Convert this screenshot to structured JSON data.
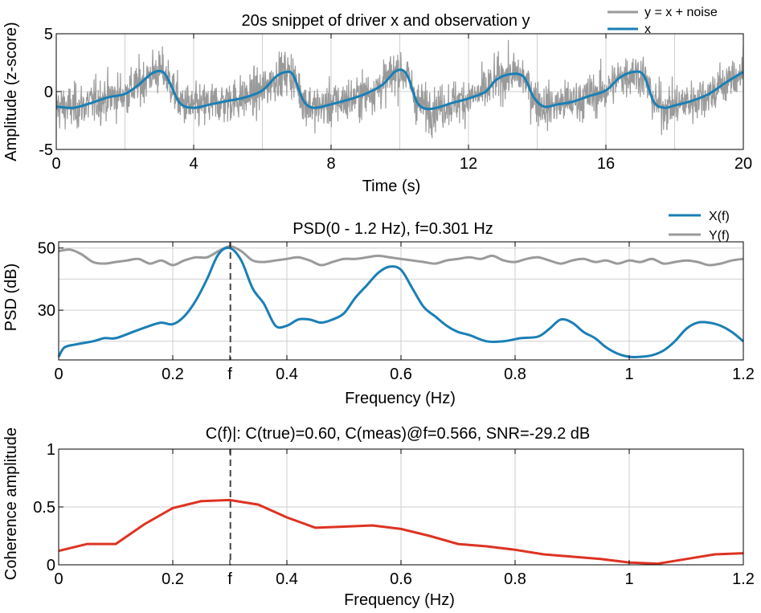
{
  "colors": {
    "x_series": "#1a7fb5",
    "y_series": "#9a9a9a",
    "coherence": "#dd3322",
    "marker": "#444444",
    "grid": "#cfcfcf"
  },
  "chart_data": [
    {
      "type": "line",
      "title": "20s snippet of driver x and observation y",
      "xlabel": "Time (s)",
      "ylabel": "Amplitude (z-score)",
      "xlim": [
        0,
        20
      ],
      "ylim": [
        -5,
        5
      ],
      "xticks": [
        0,
        4,
        8,
        12,
        16,
        20
      ],
      "yticks": [
        -5,
        0,
        5
      ],
      "xtick_labels": [
        "0",
        "4",
        "8",
        "12",
        "16",
        "20"
      ],
      "ytick_labels": [
        "-5",
        "0",
        "5"
      ],
      "grid": true,
      "legend": "top-right",
      "series": [
        {
          "name": "y = x + noise",
          "note_noise_std": 1.0,
          "x": [],
          "y": []
        },
        {
          "name": "x",
          "x": [
            0,
            0.5,
            1,
            1.5,
            2,
            2.4,
            2.8,
            3.1,
            3.3,
            3.6,
            4,
            4.5,
            5,
            5.5,
            6,
            6.4,
            6.7,
            6.9,
            7.2,
            7.5,
            8,
            8.5,
            9,
            9.5,
            9.9,
            10.2,
            10.5,
            10.8,
            11.2,
            11.5,
            12,
            12.5,
            12.8,
            13.2,
            13.6,
            13.9,
            14.2,
            14.6,
            15,
            15.5,
            16,
            16.4,
            16.8,
            17.1,
            17.4,
            17.7,
            18,
            18.5,
            19,
            19.5,
            20
          ],
          "y": [
            -1.3,
            -1.4,
            -1.0,
            -0.5,
            -0.2,
            0.6,
            1.6,
            1.7,
            0.8,
            -1.0,
            -1.4,
            -1.1,
            -0.8,
            -0.5,
            0.1,
            1.3,
            1.7,
            1.4,
            -0.8,
            -1.4,
            -1.1,
            -0.7,
            -0.2,
            0.6,
            1.8,
            1.5,
            -0.9,
            -1.5,
            -1.3,
            -1.0,
            -0.6,
            0.0,
            1.0,
            1.5,
            1.3,
            -0.5,
            -1.3,
            -1.1,
            -0.9,
            -0.4,
            0.1,
            1.2,
            1.7,
            1.4,
            -0.9,
            -1.4,
            -1.2,
            -0.8,
            -0.2,
            0.8,
            1.7
          ]
        }
      ]
    },
    {
      "type": "line",
      "title": "PSD(0 - 1.2 Hz), f=0.301 Hz",
      "xlabel": "Frequency (Hz)",
      "ylabel": "PSD (dB)",
      "xlim": [
        0,
        1.2
      ],
      "ylim": [
        14,
        52
      ],
      "xticks": [
        0,
        0.2,
        0.3,
        0.4,
        0.6,
        0.8,
        1,
        1.2
      ],
      "xtick_labels": [
        "0",
        "0.2",
        "f",
        "0.4",
        "0.6",
        "0.8",
        "1",
        "1.2"
      ],
      "yticks": [
        30,
        50
      ],
      "ytick_labels": [
        "30",
        "50"
      ],
      "ygrid": [
        20,
        30,
        40,
        50
      ],
      "marker_f": 0.301,
      "grid": true,
      "legend": "top-right",
      "series": [
        {
          "name": "X(f)",
          "x": [
            0,
            0.01,
            0.03,
            0.06,
            0.08,
            0.1,
            0.13,
            0.16,
            0.18,
            0.2,
            0.22,
            0.24,
            0.26,
            0.28,
            0.3,
            0.32,
            0.34,
            0.36,
            0.38,
            0.4,
            0.42,
            0.44,
            0.46,
            0.48,
            0.5,
            0.52,
            0.54,
            0.56,
            0.58,
            0.6,
            0.62,
            0.64,
            0.66,
            0.68,
            0.7,
            0.72,
            0.75,
            0.78,
            0.81,
            0.84,
            0.86,
            0.88,
            0.9,
            0.92,
            0.94,
            0.96,
            0.98,
            1.0,
            1.02,
            1.04,
            1.06,
            1.08,
            1.1,
            1.12,
            1.14,
            1.16,
            1.18,
            1.2
          ],
          "y": [
            15,
            18,
            19,
            20,
            21,
            21,
            23,
            25,
            26,
            25.5,
            28,
            33,
            40,
            48,
            50,
            46,
            37,
            32,
            25,
            25,
            27,
            27,
            26,
            27,
            29,
            34,
            38,
            42,
            44,
            43,
            37,
            31,
            28,
            25,
            23,
            22,
            20,
            20,
            21,
            21.5,
            24,
            27,
            26,
            23,
            21,
            18,
            16,
            15,
            15,
            15.5,
            17,
            20,
            24,
            26,
            26,
            25,
            23,
            20
          ]
        },
        {
          "name": "Y(f)",
          "x": [
            0,
            0.02,
            0.04,
            0.06,
            0.08,
            0.1,
            0.12,
            0.14,
            0.16,
            0.18,
            0.2,
            0.22,
            0.24,
            0.26,
            0.28,
            0.3,
            0.32,
            0.34,
            0.36,
            0.38,
            0.4,
            0.42,
            0.44,
            0.46,
            0.48,
            0.5,
            0.52,
            0.54,
            0.56,
            0.58,
            0.6,
            0.62,
            0.64,
            0.66,
            0.68,
            0.7,
            0.72,
            0.74,
            0.76,
            0.78,
            0.8,
            0.82,
            0.84,
            0.86,
            0.88,
            0.9,
            0.92,
            0.94,
            0.96,
            0.98,
            1.0,
            1.02,
            1.04,
            1.06,
            1.08,
            1.1,
            1.12,
            1.14,
            1.16,
            1.18,
            1.2
          ],
          "y": [
            49,
            49.5,
            48,
            45.5,
            45,
            45.5,
            46,
            46.5,
            45,
            46,
            44.5,
            46,
            47,
            47,
            49,
            50.5,
            49,
            46,
            45.5,
            46,
            46.5,
            47,
            46,
            44.5,
            45.5,
            46.5,
            46.5,
            47,
            47.5,
            47,
            46.5,
            46,
            45.5,
            45,
            46,
            46.5,
            47,
            46.5,
            47.5,
            46,
            45.5,
            46.5,
            47,
            46,
            45,
            46,
            46.5,
            45.5,
            46,
            45,
            46,
            45.5,
            46.5,
            45,
            45.5,
            46,
            45.5,
            44.5,
            45,
            46,
            46.5
          ]
        }
      ]
    },
    {
      "type": "line",
      "title": "C(f)|: C(true)=0.60,  C(meas)@f=0.566, SNR=-29.2 dB",
      "xlabel": "Frequency (Hz)",
      "ylabel": "Coherence amplitude",
      "xlim": [
        0,
        1.2
      ],
      "ylim": [
        0,
        1
      ],
      "xticks": [
        0,
        0.2,
        0.3,
        0.4,
        0.6,
        0.8,
        1,
        1.2
      ],
      "xtick_labels": [
        "0",
        "0.2",
        "f",
        "0.4",
        "0.6",
        "0.8",
        "1",
        "1.2"
      ],
      "yticks": [
        0,
        0.5,
        1
      ],
      "ytick_labels": [
        "0",
        "0.5",
        "1"
      ],
      "marker_f": 0.301,
      "grid": true,
      "series": [
        {
          "x": [
            0,
            0.05,
            0.1,
            0.15,
            0.2,
            0.25,
            0.3,
            0.35,
            0.4,
            0.45,
            0.5,
            0.55,
            0.6,
            0.65,
            0.7,
            0.75,
            0.8,
            0.85,
            0.9,
            0.95,
            1.0,
            1.05,
            1.1,
            1.15,
            1.2
          ],
          "y": [
            0.12,
            0.18,
            0.18,
            0.35,
            0.49,
            0.55,
            0.56,
            0.52,
            0.41,
            0.32,
            0.33,
            0.34,
            0.31,
            0.25,
            0.18,
            0.16,
            0.13,
            0.09,
            0.07,
            0.05,
            0.02,
            0.01,
            0.05,
            0.09,
            0.1
          ]
        }
      ]
    }
  ]
}
